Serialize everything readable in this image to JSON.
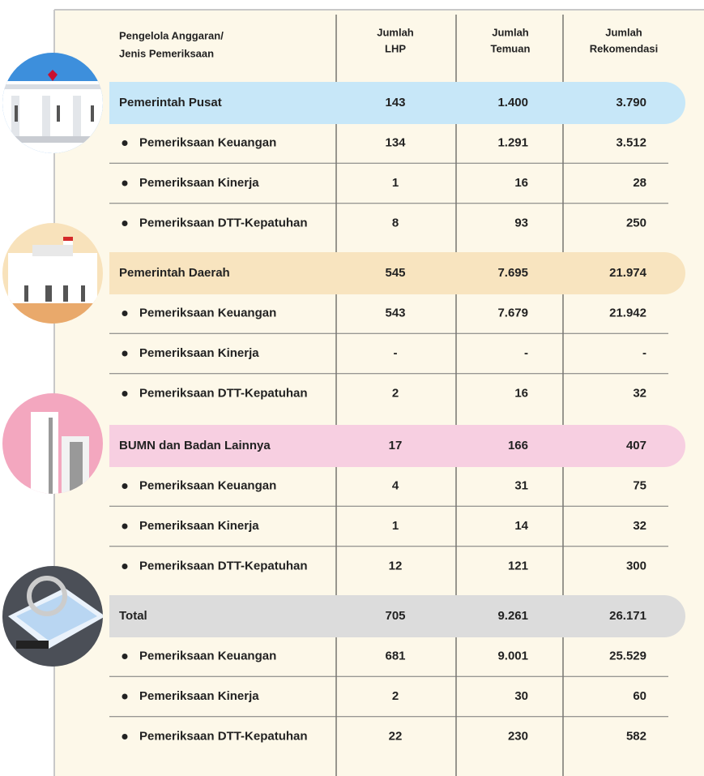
{
  "header": {
    "columns": [
      [
        "Pengelola Anggaran/",
        "Jenis Pemeriksaan"
      ],
      [
        "Jumlah",
        "LHP"
      ],
      [
        "Jumlah",
        "Temuan"
      ],
      [
        "Jumlah",
        "Rekomendasi"
      ]
    ]
  },
  "groups": [
    {
      "name": "Pemerintah Pusat",
      "values": [
        "143",
        "1.400",
        "3.790"
      ],
      "rows": [
        {
          "name": "Pemeriksaan Keuangan",
          "values": [
            "134",
            "1.291",
            "3.512"
          ]
        },
        {
          "name": "Pemeriksaan Kinerja",
          "values": [
            "1",
            "16",
            "28"
          ]
        },
        {
          "name": "Pemeriksaan DTT-Kepatuhan",
          "values": [
            "8",
            "93",
            "250"
          ]
        }
      ]
    },
    {
      "name": "Pemerintah Daerah",
      "values": [
        "545",
        "7.695",
        "21.974"
      ],
      "rows": [
        {
          "name": "Pemeriksaan Keuangan",
          "values": [
            "543",
            "7.679",
            "21.942"
          ]
        },
        {
          "name": "Pemeriksaan Kinerja",
          "values": [
            "-",
            "-",
            "-"
          ]
        },
        {
          "name": "Pemeriksaan DTT-Kepatuhan",
          "values": [
            "2",
            "16",
            "32"
          ]
        }
      ]
    },
    {
      "name": "BUMN dan Badan Lainnya",
      "values": [
        "17",
        "166",
        "407"
      ],
      "rows": [
        {
          "name": "Pemeriksaan Keuangan",
          "values": [
            "4",
            "31",
            "75"
          ]
        },
        {
          "name": "Pemeriksaan Kinerja",
          "values": [
            "1",
            "14",
            "32"
          ]
        },
        {
          "name": "Pemeriksaan DTT-Kepatuhan",
          "values": [
            "12",
            "121",
            "300"
          ]
        }
      ]
    },
    {
      "name": "Total",
      "values": [
        "705",
        "9.261",
        "26.171"
      ],
      "rows": [
        {
          "name": "Pemeriksaan Keuangan",
          "values": [
            "681",
            "9.001",
            "25.529"
          ]
        },
        {
          "name": "Pemeriksaan Kinerja",
          "values": [
            "2",
            "30",
            "60"
          ]
        },
        {
          "name": "Pemeriksaan DTT-Kepatuhan",
          "values": [
            "22",
            "230",
            "582"
          ]
        }
      ]
    }
  ]
}
